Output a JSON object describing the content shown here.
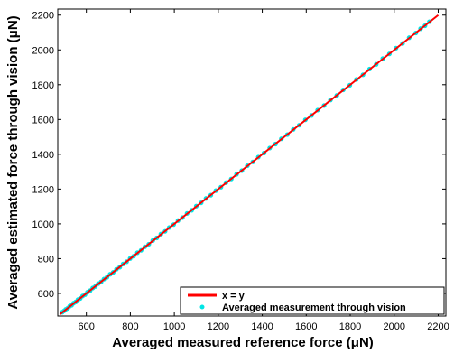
{
  "chart_data": {
    "type": "scatter",
    "xlabel": "Averaged measured reference force (μN)",
    "ylabel": "Averaged estimated force through vision (μN)",
    "xlim": [
      470,
      2235
    ],
    "ylim": [
      470,
      2235
    ],
    "xticks": [
      600,
      800,
      1000,
      1200,
      1400,
      1600,
      1800,
      2000,
      2200
    ],
    "yticks": [
      600,
      800,
      1000,
      1200,
      1400,
      1600,
      1800,
      2000,
      2200
    ],
    "legend_position": "bottom-right",
    "grid": false,
    "series": [
      {
        "name": "x = y",
        "kind": "line",
        "color": "#ff0000",
        "x": [
          480,
          2200
        ],
        "y": [
          480,
          2200
        ]
      },
      {
        "name": "Averaged measurement through vision",
        "kind": "scatter",
        "color": "#00e5e5",
        "x": [
          490,
          498,
          506,
          515,
          524,
          533,
          542,
          552,
          562,
          572,
          583,
          594,
          605,
          617,
          629,
          641,
          654,
          667,
          680,
          694,
          708,
          722,
          737,
          752,
          767,
          783,
          799,
          815,
          832,
          849,
          866,
          884,
          902,
          920,
          939,
          958,
          977,
          997,
          1017,
          1037,
          1058,
          1079,
          1100,
          1122,
          1144,
          1166,
          1189,
          1212,
          1235,
          1259,
          1283,
          1307,
          1332,
          1357,
          1382,
          1408,
          1434,
          1460,
          1487,
          1514,
          1541,
          1568,
          1596,
          1624,
          1652,
          1681,
          1710,
          1739,
          1768,
          1798,
          1828,
          1858,
          1888,
          1918,
          1948,
          1978,
          2008,
          2038,
          2068,
          2098,
          2120,
          2140,
          2160
        ],
        "y": [
          492,
          499,
          508,
          514,
          526,
          532,
          544,
          551,
          564,
          571,
          585,
          593,
          607,
          616,
          631,
          640,
          656,
          666,
          682,
          693,
          710,
          721,
          739,
          751,
          769,
          782,
          801,
          814,
          834,
          848,
          868,
          883,
          904,
          919,
          941,
          957,
          979,
          996,
          1019,
          1036,
          1060,
          1078,
          1102,
          1121,
          1146,
          1165,
          1191,
          1211,
          1237,
          1258,
          1285,
          1306,
          1334,
          1356,
          1384,
          1407,
          1436,
          1459,
          1489,
          1513,
          1543,
          1567,
          1598,
          1623,
          1654,
          1680,
          1712,
          1738,
          1770,
          1797,
          1830,
          1857,
          1890,
          1917,
          1950,
          1977,
          2010,
          2037,
          2070,
          2097,
          2122,
          2139,
          2162
        ]
      }
    ]
  }
}
